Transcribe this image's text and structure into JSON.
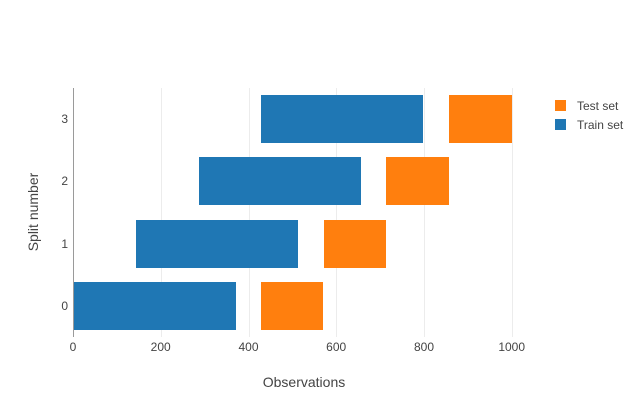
{
  "chart_data": {
    "type": "bar",
    "orientation": "horizontal",
    "title": "",
    "xlabel": "Observations",
    "ylabel": "Split number",
    "x_ticks": [
      0,
      200,
      400,
      600,
      800,
      1000
    ],
    "xlim": [
      0,
      1053
    ],
    "y_categories": [
      "0",
      "1",
      "2",
      "3"
    ],
    "grid": "vertical-only",
    "legend_position": "top-right-outside",
    "legend": [
      {
        "label": "Test set",
        "color": "#ff7f0e",
        "series": "test"
      },
      {
        "label": "Train set",
        "color": "#1f77b4",
        "series": "train"
      }
    ],
    "splits": [
      {
        "split": "0",
        "train": [
          0,
          371
        ],
        "test": [
          429,
          571
        ]
      },
      {
        "split": "1",
        "train": [
          143,
          512
        ],
        "test": [
          571,
          714
        ]
      },
      {
        "split": "2",
        "train": [
          286,
          656
        ],
        "test": [
          714,
          857
        ]
      },
      {
        "split": "3",
        "train": [
          429,
          798
        ],
        "test": [
          857,
          1000
        ]
      }
    ],
    "colors": {
      "train": "#1f77b4",
      "test": "#ff7f0e",
      "gridline": "#ececec",
      "zeroline": "#9a9a9a",
      "text": "#444444",
      "background": "#ffffff"
    }
  }
}
